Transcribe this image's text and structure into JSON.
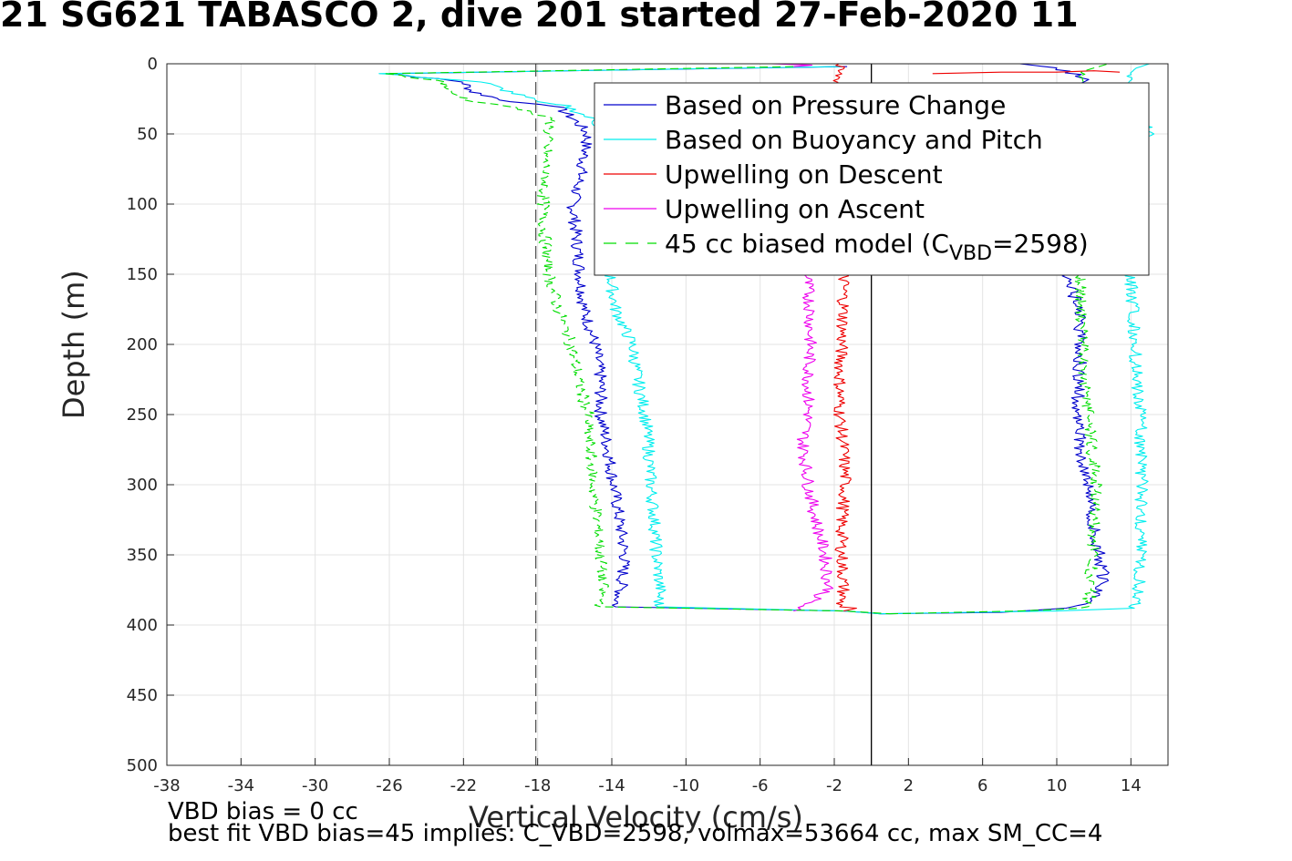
{
  "title": "21 SG621 TABASCO 2, dive 201 started 27-Feb-2020 11",
  "footer": {
    "line1": "VBD bias = 0 cc",
    "line2": "best fit VBD bias=45 implies: C_VBD=2598, volmax=53664 cc, max SM_CC=4"
  },
  "colors": {
    "pressure_change": "#0000cc",
    "buoyancy_pitch": "#00eeee",
    "upwelling_descent": "#ee0000",
    "upwelling_ascent": "#ee00ee",
    "biased_model": "#00dd00",
    "reference_dashed": "#555555",
    "zero_line": "#000000"
  },
  "chart_data": {
    "type": "line",
    "xlabel": "Vertical Velocity (cm/s)",
    "ylabel": "Depth (m)",
    "xlim": [
      -38,
      16
    ],
    "ylim": [
      0,
      500
    ],
    "y_reversed": true,
    "grid": true,
    "xticks": [
      -38,
      -34,
      -30,
      -26,
      -22,
      -18,
      -14,
      -10,
      -6,
      -2,
      2,
      6,
      10,
      14
    ],
    "yticks": [
      0,
      50,
      100,
      150,
      200,
      250,
      300,
      350,
      400,
      450,
      500
    ],
    "legend_position": "top-right",
    "legend": [
      {
        "key": "pressure_change",
        "label": "Based on Pressure Change",
        "style": "solid"
      },
      {
        "key": "buoyancy_pitch",
        "label": "Based on Buoyancy and Pitch",
        "style": "solid"
      },
      {
        "key": "upwelling_descent",
        "label": "Upwelling on Descent",
        "style": "solid"
      },
      {
        "key": "upwelling_ascent",
        "label": "Upwelling on Ascent",
        "style": "solid"
      },
      {
        "key": "biased_model",
        "label": "45 cc biased model (C",
        "sub": "VBD",
        "tail": "=2598)",
        "style": "dashed"
      }
    ],
    "vertical_lines": [
      {
        "x": -18.1,
        "style": "dashed",
        "color_key": "reference_dashed"
      },
      {
        "x": 0,
        "style": "solid",
        "color_key": "zero_line"
      }
    ],
    "series": [
      {
        "key": "pressure_change",
        "descent": [
          [
            -1.3,
            2
          ],
          [
            -26,
            7
          ],
          [
            -22,
            13
          ],
          [
            -21.5,
            20
          ],
          [
            -19.5,
            27
          ],
          [
            -17,
            30
          ],
          [
            -16,
            40
          ],
          [
            -15.3,
            50
          ],
          [
            -15.6,
            75
          ],
          [
            -16.1,
            100
          ],
          [
            -15.9,
            125
          ],
          [
            -15.7,
            150
          ],
          [
            -15.5,
            175
          ],
          [
            -14.9,
            200
          ],
          [
            -14.6,
            225
          ],
          [
            -14.6,
            250
          ],
          [
            -14.2,
            275
          ],
          [
            -13.9,
            300
          ],
          [
            -13.6,
            325
          ],
          [
            -13.3,
            350
          ],
          [
            -13.5,
            375
          ],
          [
            -13.8,
            387
          ],
          [
            -1.5,
            390
          ],
          [
            0.5,
            392
          ]
        ],
        "ascent": [
          [
            0.5,
            392
          ],
          [
            7,
            391
          ],
          [
            10.5,
            388
          ],
          [
            11.5,
            385
          ],
          [
            12.3,
            380
          ],
          [
            12.5,
            365
          ],
          [
            12.3,
            350
          ],
          [
            11.9,
            325
          ],
          [
            11.7,
            300
          ],
          [
            11.3,
            275
          ],
          [
            11.1,
            250
          ],
          [
            11.2,
            225
          ],
          [
            11.3,
            200
          ],
          [
            11.2,
            175
          ],
          [
            10.8,
            160
          ],
          [
            10.4,
            150
          ],
          [
            11,
            120
          ],
          [
            11.3,
            80
          ],
          [
            11.1,
            50
          ],
          [
            11.2,
            20
          ],
          [
            11.5,
            10
          ],
          [
            10,
            3
          ],
          [
            8,
            0
          ]
        ]
      },
      {
        "key": "buoyancy_pitch",
        "descent": [
          [
            -1.5,
            2
          ],
          [
            -26.5,
            7
          ],
          [
            -21,
            13
          ],
          [
            -19.5,
            20
          ],
          [
            -18,
            27
          ],
          [
            -16.5,
            30
          ],
          [
            -15,
            40
          ],
          [
            -14.3,
            50
          ],
          [
            -14.2,
            100
          ],
          [
            -14.1,
            150
          ],
          [
            -13.8,
            175
          ],
          [
            -12.9,
            200
          ],
          [
            -12.6,
            225
          ],
          [
            -12.2,
            250
          ],
          [
            -12,
            275
          ],
          [
            -11.9,
            300
          ],
          [
            -11.7,
            325
          ],
          [
            -11.6,
            350
          ],
          [
            -11.4,
            375
          ],
          [
            -11.5,
            387
          ],
          [
            -1.5,
            390
          ],
          [
            0.5,
            392
          ]
        ],
        "ascent": [
          [
            0.5,
            392
          ],
          [
            10,
            390
          ],
          [
            14.2,
            388
          ],
          [
            14.4,
            380
          ],
          [
            14.5,
            350
          ],
          [
            14.6,
            300
          ],
          [
            14.5,
            250
          ],
          [
            14.2,
            200
          ],
          [
            14,
            150
          ],
          [
            14.1,
            100
          ],
          [
            14.4,
            60
          ],
          [
            14.9,
            50
          ],
          [
            14.3,
            20
          ],
          [
            14,
            10
          ],
          [
            14.3,
            3
          ],
          [
            15,
            0
          ]
        ]
      },
      {
        "key": "upwelling_descent",
        "descent": [
          [
            -1.8,
            0
          ],
          [
            -1.5,
            150
          ],
          [
            -1.5,
            175
          ],
          [
            -1.6,
            200
          ],
          [
            -1.7,
            225
          ],
          [
            -1.7,
            250
          ],
          [
            -1.5,
            275
          ],
          [
            -1.4,
            300
          ],
          [
            -1.6,
            325
          ],
          [
            -1.6,
            350
          ],
          [
            -1.5,
            375
          ],
          [
            -1.7,
            387
          ],
          [
            -0.8,
            388
          ],
          [
            -1.5,
            390
          ]
        ],
        "ascent": [
          [
            3.3,
            7
          ],
          [
            7,
            6
          ],
          [
            10,
            6
          ],
          [
            12,
            5
          ],
          [
            13.4,
            6
          ]
        ]
      },
      {
        "key": "upwelling_ascent",
        "descent": [
          [
            -5.4,
            0
          ],
          [
            -3.2,
            1
          ],
          [
            -4.2,
            2
          ]
        ],
        "ascent": [
          [
            -3.5,
            150
          ],
          [
            -3.3,
            175
          ],
          [
            -3.3,
            200
          ],
          [
            -3.4,
            225
          ],
          [
            -3.4,
            250
          ],
          [
            -3.7,
            270
          ],
          [
            -3.4,
            300
          ],
          [
            -3,
            325
          ],
          [
            -2.5,
            350
          ],
          [
            -2.3,
            375
          ],
          [
            -3.5,
            385
          ],
          [
            -4.2,
            390
          ]
        ]
      },
      {
        "key": "biased_model",
        "descent": [
          [
            -4.5,
            2
          ],
          [
            -26,
            7
          ],
          [
            -23,
            13
          ],
          [
            -22.8,
            20
          ],
          [
            -21.5,
            27
          ],
          [
            -19.5,
            30
          ],
          [
            -17.2,
            40
          ],
          [
            -17.5,
            50
          ],
          [
            -17.6,
            75
          ],
          [
            -17.7,
            100
          ],
          [
            -17.6,
            125
          ],
          [
            -17.4,
            150
          ],
          [
            -16.9,
            175
          ],
          [
            -16.2,
            200
          ],
          [
            -15.8,
            225
          ],
          [
            -15.3,
            250
          ],
          [
            -15.2,
            275
          ],
          [
            -15,
            300
          ],
          [
            -14.8,
            325
          ],
          [
            -14.6,
            350
          ],
          [
            -14.5,
            375
          ],
          [
            -14.6,
            387
          ],
          [
            -1.5,
            390
          ],
          [
            1,
            392
          ]
        ],
        "ascent": [
          [
            1,
            392
          ],
          [
            8,
            390
          ],
          [
            11.5,
            388
          ],
          [
            11.8,
            380
          ],
          [
            11.9,
            350
          ],
          [
            12,
            325
          ],
          [
            12.1,
            300
          ],
          [
            11.9,
            275
          ],
          [
            11.7,
            250
          ],
          [
            11.5,
            225
          ],
          [
            11.4,
            200
          ],
          [
            11.3,
            175
          ],
          [
            11.2,
            150
          ],
          [
            11.3,
            100
          ],
          [
            11.2,
            60
          ],
          [
            11.2,
            50
          ],
          [
            11.4,
            20
          ],
          [
            11.1,
            10
          ],
          [
            11.5,
            5
          ],
          [
            12,
            3
          ],
          [
            12.8,
            0
          ]
        ]
      }
    ]
  }
}
